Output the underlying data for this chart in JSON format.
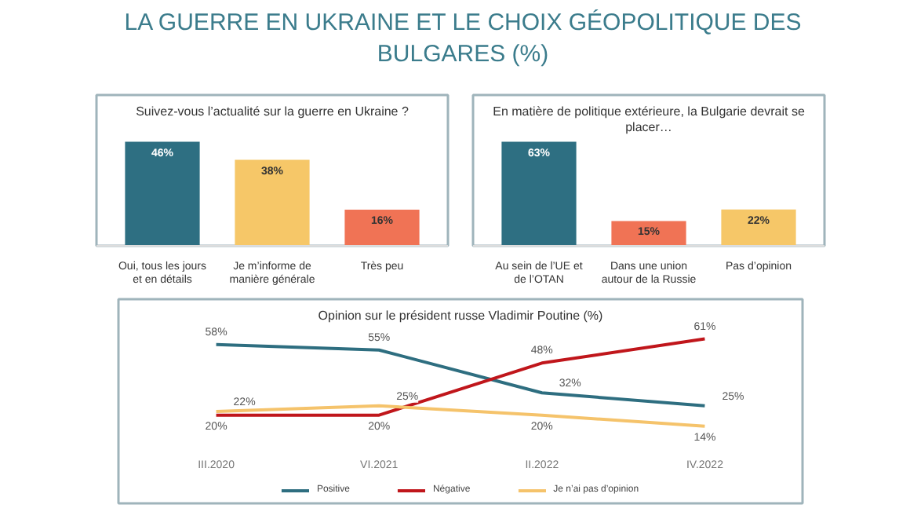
{
  "chart_data": [
    {
      "type": "bar",
      "title": "LA GUERRE EN UKRAINE ET LE CHOIX GÉOPOLITIQUE DES BULGARES (%)",
      "subtitle": "Suivez-vous l’actualité sur la guerre en Ukraine ?",
      "categories": [
        "Oui, tous les jours et en détails",
        "Je m’informe de manière générale",
        "Très peu"
      ],
      "values": [
        46,
        38,
        16
      ],
      "colors": [
        "#2e6f82",
        "#f6c768",
        "#f07355"
      ],
      "value_labels": [
        "46%",
        "38%",
        "16%"
      ],
      "grid": false
    },
    {
      "type": "bar",
      "subtitle": "En matière de politique extérieure, la Bulgarie devrait se placer…",
      "categories": [
        "Au sein de l’UE et de l’OTAN",
        "Dans une union autour de la Russie",
        "Pas d’opinion"
      ],
      "values": [
        63,
        15,
        22
      ],
      "colors": [
        "#2e6f82",
        "#f07355",
        "#f6c768"
      ],
      "value_labels": [
        "63%",
        "15%",
        "22%"
      ],
      "grid": false
    },
    {
      "type": "line",
      "subtitle": "Opinion sur le président russe Vladimir Poutine (%)",
      "categories": [
        "III.2020",
        "VI.2021",
        "II.2022",
        "IV.2022"
      ],
      "series": [
        {
          "name": "Positive",
          "color": "#2e6e80",
          "values": [
            58,
            55,
            32,
            25
          ],
          "value_labels": [
            "58%",
            "55%",
            "32%",
            "25%"
          ]
        },
        {
          "name": "Négative",
          "color": "#c0161b",
          "values": [
            20,
            20,
            48,
            61
          ],
          "value_labels": [
            "20%",
            "20%",
            "48%",
            "61%"
          ]
        },
        {
          "name": "Je n’ai pas d’opinion",
          "color": "#f5c36b",
          "values": [
            22,
            25,
            20,
            14
          ],
          "value_labels": [
            "22%",
            "25%",
            "20%",
            "14%"
          ]
        }
      ],
      "legend": "bottom",
      "grid": false
    }
  ]
}
